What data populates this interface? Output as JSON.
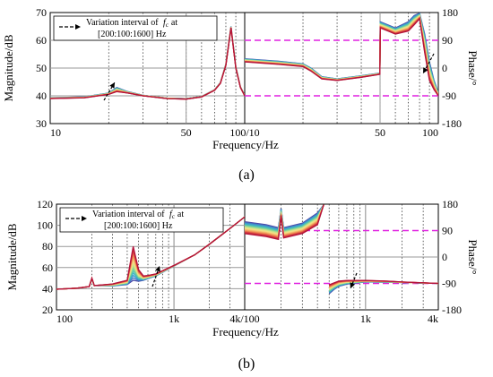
{
  "figure": {
    "panel_a_label": "(a)",
    "panel_b_label": "(b)",
    "legend_line1": "Variation interval of",
    "legend_fc": "f",
    "legend_fc_sub": "c",
    "legend_at": "at",
    "legend_line2": "[200:100:1600]  Hz",
    "color_scale": [
      "#4a4aa8",
      "#3f8fd0",
      "#3cb6c4",
      "#6ccf9a",
      "#bfe38a",
      "#f2e58a",
      "#f6c06e",
      "#f08a52",
      "#d9403f",
      "#b3133a"
    ]
  },
  "chart_data": [
    {
      "type": "line",
      "panel": "a-left",
      "xscale": "log",
      "xlim": [
        10,
        100
      ],
      "ylim": [
        30,
        70
      ],
      "xticks": [
        "10",
        "50",
        "100/10"
      ],
      "yticks": [
        "30",
        "40",
        "50",
        "60",
        "70"
      ],
      "ylabel": "Magnitude/dB",
      "grid": true,
      "series_note": "15 curves, fc from 200 to 1600 Hz",
      "x": [
        10,
        15,
        20,
        22,
        25,
        30,
        40,
        50,
        60,
        70,
        75,
        80,
        85,
        90,
        95,
        100
      ],
      "series_low_fc": [
        39.0,
        39.3,
        40.5,
        41.5,
        41.0,
        40.0,
        39.0,
        38.8,
        39.6,
        42.0,
        44.5,
        51.0,
        64.5,
        50.0,
        43.0,
        40.0
      ],
      "series_high_fc": [
        39.3,
        39.6,
        41.0,
        43.0,
        41.5,
        40.2,
        39.2,
        39.0,
        39.8,
        42.2,
        44.8,
        51.5,
        65.0,
        50.5,
        43.3,
        40.2
      ]
    },
    {
      "type": "line",
      "panel": "a-right",
      "xscale": "log",
      "xlim": [
        10,
        100
      ],
      "ylim": [
        -180,
        180
      ],
      "xticks": [
        "50",
        "100"
      ],
      "yticks": [
        "180",
        "90",
        "0",
        "-90",
        "-180"
      ],
      "ylabel": "Phase/°",
      "xlabel": "Frequency/Hz",
      "reference_lines": [
        90,
        -90
      ],
      "x": [
        10,
        15,
        20,
        22,
        25,
        30,
        40,
        48,
        49.9,
        50.1,
        55,
        60,
        70,
        75,
        80,
        85,
        90,
        95,
        100
      ],
      "series_low_fc": [
        20,
        12,
        5,
        -10,
        -35,
        -40,
        -30,
        -22,
        -20,
        130,
        120,
        110,
        120,
        140,
        160,
        50,
        -40,
        -70,
        -90
      ],
      "series_high_fc": [
        30,
        22,
        14,
        0,
        -28,
        -35,
        -25,
        -18,
        -16,
        150,
        140,
        130,
        150,
        170,
        178,
        110,
        20,
        -40,
        -80
      ]
    },
    {
      "type": "line",
      "panel": "b-left",
      "xscale": "log",
      "xlim": [
        100,
        4000
      ],
      "ylim": [
        20,
        120
      ],
      "xticks": [
        "100",
        "1k",
        "4k/100"
      ],
      "yticks": [
        "20",
        "40",
        "60",
        "80",
        "100",
        "120"
      ],
      "ylabel": "Magnitude/dB",
      "grid": true,
      "x": [
        100,
        150,
        190,
        200,
        210,
        300,
        400,
        450,
        500,
        550,
        600,
        700,
        1000,
        1500,
        2000,
        3000,
        4000
      ],
      "series_low_fc": [
        39.5,
        40.5,
        42.0,
        50.0,
        43.0,
        44.5,
        48.0,
        80.0,
        58.0,
        52.0,
        52.5,
        54.0,
        62.0,
        72.0,
        82.0,
        97.0,
        108.0
      ],
      "series_high_fc": [
        39.5,
        40.5,
        42.0,
        49.0,
        43.0,
        42.5,
        44.0,
        48.0,
        47.0,
        48.0,
        49.5,
        52.0,
        61.5,
        72.0,
        82.0,
        97.0,
        108.0
      ]
    },
    {
      "type": "line",
      "panel": "b-right",
      "xscale": "log",
      "xlim": [
        100,
        4000
      ],
      "ylim": [
        -180,
        180
      ],
      "xticks": [
        "1k",
        "4k"
      ],
      "yticks": [
        "180",
        "90",
        "0",
        "-90",
        "-180"
      ],
      "ylabel": "Phase/°",
      "xlabel": "Frequency/Hz",
      "reference_lines": [
        90,
        -90
      ],
      "x": [
        100,
        150,
        190,
        200,
        210,
        300,
        400,
        450,
        500,
        550,
        600,
        700,
        1000,
        1500,
        2000,
        3000,
        4000
      ],
      "series_low_fc": [
        80,
        70,
        60,
        140,
        65,
        80,
        110,
        178,
        -95,
        -88,
        -82,
        -80,
        -80,
        -82,
        -85,
        -88,
        -90
      ],
      "series_high_fc": [
        120,
        110,
        100,
        165,
        100,
        115,
        150,
        178,
        -125,
        -110,
        -100,
        -92,
        -85,
        -86,
        -87,
        -89,
        -90
      ]
    }
  ]
}
